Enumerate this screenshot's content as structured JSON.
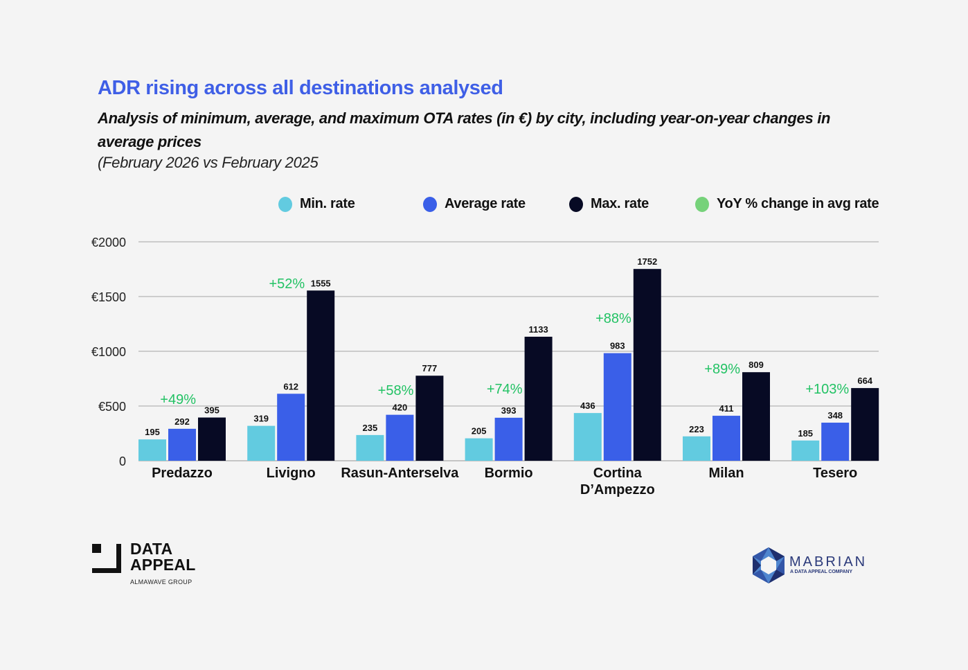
{
  "header": {
    "title": "ADR rising across all destinations analysed",
    "subtitle": "Analysis of minimum, average, and maximum OTA rates (in €)  by city, including year-on-year changes in average prices",
    "period": "(February 2026 vs February 2025"
  },
  "legend": [
    {
      "label": "Min. rate",
      "color": "#62cbe0"
    },
    {
      "label": "Average rate",
      "color": "#3a5fe8"
    },
    {
      "label": "Max. rate",
      "color": "#070a24"
    },
    {
      "label": "YoY % change in avg rate",
      "color": "#76d27a"
    }
  ],
  "chart_data": {
    "type": "bar",
    "title": "ADR rising across all destinations analysed",
    "xlabel": "",
    "ylabel": "",
    "ylim": [
      0,
      2000
    ],
    "yticks": [
      0,
      500,
      1000,
      1500,
      2000
    ],
    "ytick_labels": [
      "0",
      "€500",
      "€1000",
      "€1500",
      "€2000"
    ],
    "grid": true,
    "legend_position": "top",
    "categories": [
      "Predazzo",
      "Livigno",
      "Rasun-Anterselva",
      "Bormio",
      "Cortina D’Ampezzo",
      "Milan",
      "Tesero"
    ],
    "category_lines": [
      [
        "Predazzo"
      ],
      [
        "Livigno"
      ],
      [
        "Rasun-Anterselva"
      ],
      [
        "Bormio"
      ],
      [
        "Cortina",
        "D’Ampezzo"
      ],
      [
        "Milan"
      ],
      [
        "Tesero"
      ]
    ],
    "series": [
      {
        "name": "Min. rate",
        "color": "#62cbe0",
        "values": [
          195,
          319,
          235,
          205,
          436,
          223,
          185
        ]
      },
      {
        "name": "Average rate",
        "color": "#3a5fe8",
        "values": [
          292,
          612,
          420,
          393,
          983,
          411,
          348
        ]
      },
      {
        "name": "Max. rate",
        "color": "#070a24",
        "values": [
          395,
          1555,
          777,
          1133,
          1752,
          809,
          664
        ]
      }
    ],
    "yoy_change": {
      "name": "YoY % change in avg rate",
      "color": "#22c264",
      "labels": [
        "+49%",
        "+52%",
        "+58%",
        "+74%",
        "+88%",
        "+89%",
        "+103%"
      ]
    }
  },
  "logos": {
    "left": {
      "line1": "DATA",
      "line2": "APPEAL",
      "sub": "ALMAWAVE GROUP"
    },
    "right": {
      "name": "MABRIAN",
      "sub": "A DATA APPEAL COMPANY"
    }
  }
}
